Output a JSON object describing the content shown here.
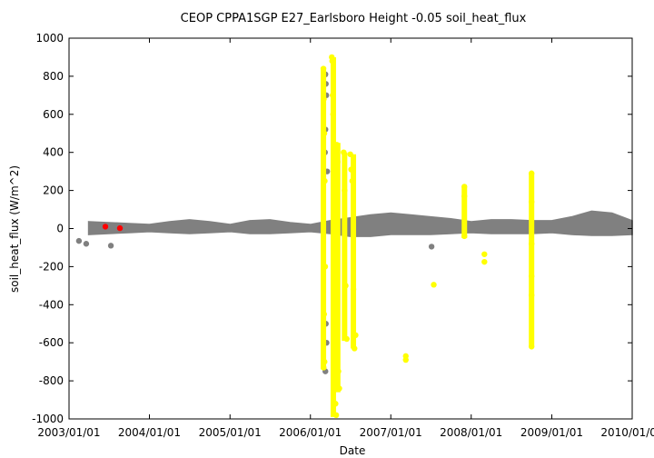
{
  "chart_data": {
    "type": "scatter",
    "title": "CEOP CPPA1SGP E27_Earlsboro Height -0.05 soil_heat_flux",
    "xlabel": "Date",
    "ylabel": "soil_heat_flux (W/m^2)",
    "xlim": [
      "2003/01/01",
      "2010/01/01"
    ],
    "ylim": [
      -1000,
      1000
    ],
    "x_ticks": [
      "2003/01/01",
      "2004/01/01",
      "2005/01/01",
      "2006/01/01",
      "2007/01/01",
      "2008/01/01",
      "2009/01/01",
      "2010/01/01"
    ],
    "y_ticks": [
      1000,
      800,
      600,
      400,
      200,
      0,
      -200,
      -400,
      -600,
      -800,
      -1000
    ],
    "grid": false,
    "legend": "none",
    "series": [
      {
        "color": "#808080",
        "style": "band",
        "band": [
          {
            "x": "2003/04/01",
            "lo": -30,
            "hi": 35
          },
          {
            "x": "2003/07/01",
            "lo": -25,
            "hi": 30
          },
          {
            "x": "2003/10/01",
            "lo": -20,
            "hi": 25
          },
          {
            "x": "2004/01/01",
            "lo": -15,
            "hi": 20
          },
          {
            "x": "2004/04/01",
            "lo": -20,
            "hi": 35
          },
          {
            "x": "2004/07/01",
            "lo": -25,
            "hi": 45
          },
          {
            "x": "2004/10/01",
            "lo": -20,
            "hi": 35
          },
          {
            "x": "2005/01/01",
            "lo": -15,
            "hi": 20
          },
          {
            "x": "2005/04/01",
            "lo": -25,
            "hi": 40
          },
          {
            "x": "2005/07/01",
            "lo": -25,
            "hi": 45
          },
          {
            "x": "2005/10/01",
            "lo": -20,
            "hi": 30
          },
          {
            "x": "2006/01/01",
            "lo": -15,
            "hi": 20
          },
          {
            "x": "2006/04/01",
            "lo": -25,
            "hi": 40
          },
          {
            "x": "2006/07/01",
            "lo": -40,
            "hi": 55
          },
          {
            "x": "2006/10/01",
            "lo": -40,
            "hi": 70
          },
          {
            "x": "2007/01/01",
            "lo": -30,
            "hi": 80
          },
          {
            "x": "2007/04/01",
            "lo": -30,
            "hi": 70
          },
          {
            "x": "2007/07/01",
            "lo": -30,
            "hi": 60
          },
          {
            "x": "2007/10/01",
            "lo": -25,
            "hi": 50
          },
          {
            "x": "2008/01/01",
            "lo": -20,
            "hi": 35
          },
          {
            "x": "2008/04/01",
            "lo": -25,
            "hi": 45
          },
          {
            "x": "2008/07/01",
            "lo": -25,
            "hi": 45
          },
          {
            "x": "2008/10/01",
            "lo": -25,
            "hi": 40
          },
          {
            "x": "2009/01/01",
            "lo": -20,
            "hi": 40
          },
          {
            "x": "2009/04/01",
            "lo": -30,
            "hi": 60
          },
          {
            "x": "2009/07/01",
            "lo": -35,
            "hi": 90
          },
          {
            "x": "2009/10/01",
            "lo": -35,
            "hi": 80
          },
          {
            "x": "2009/12/31",
            "lo": -30,
            "hi": 40
          }
        ],
        "points": [
          {
            "x": "2003/02/15",
            "y": -65
          },
          {
            "x": "2003/03/20",
            "y": -80
          },
          {
            "x": "2003/07/10",
            "y": -90
          },
          {
            "x": "2006/03/10",
            "y": 810
          },
          {
            "x": "2006/03/12",
            "y": 760
          },
          {
            "x": "2006/03/14",
            "y": 700
          },
          {
            "x": "2006/03/10",
            "y": 520
          },
          {
            "x": "2006/03/08",
            "y": 400
          },
          {
            "x": "2006/03/18",
            "y": 300
          },
          {
            "x": "2006/03/12",
            "y": -500
          },
          {
            "x": "2006/03/15",
            "y": -600
          },
          {
            "x": "2006/03/10",
            "y": -750
          },
          {
            "x": "2007/07/05",
            "y": -95
          }
        ]
      },
      {
        "color": "#ffff00",
        "style": "points-with-stems",
        "points": [
          {
            "x": "2006/03/01",
            "y": 840
          },
          {
            "x": "2006/03/03",
            "y": 680
          },
          {
            "x": "2006/03/05",
            "y": 500
          },
          {
            "x": "2006/03/07",
            "y": 250
          },
          {
            "x": "2006/03/09",
            "y": -200
          },
          {
            "x": "2006/03/04",
            "y": -450
          },
          {
            "x": "2006/03/06",
            "y": -700
          },
          {
            "x": "2006/03/02",
            "y": -730
          },
          {
            "x": "2006/04/08",
            "y": 900
          },
          {
            "x": "2006/04/10",
            "y": 880
          },
          {
            "x": "2006/04/12",
            "y": 700
          },
          {
            "x": "2006/04/14",
            "y": 600
          },
          {
            "x": "2006/04/16",
            "y": 400
          },
          {
            "x": "2006/04/18",
            "y": -400
          },
          {
            "x": "2006/04/20",
            "y": -600
          },
          {
            "x": "2006/04/22",
            "y": -800
          },
          {
            "x": "2006/04/25",
            "y": -920
          },
          {
            "x": "2006/04/28",
            "y": -980
          },
          {
            "x": "2006/05/01",
            "y": 440
          },
          {
            "x": "2006/05/05",
            "y": 350
          },
          {
            "x": "2006/05/08",
            "y": -750
          },
          {
            "x": "2006/05/12",
            "y": -840
          },
          {
            "x": "2006/06/01",
            "y": 400
          },
          {
            "x": "2006/06/05",
            "y": 200
          },
          {
            "x": "2006/06/10",
            "y": -300
          },
          {
            "x": "2006/06/15",
            "y": -580
          },
          {
            "x": "2006/07/01",
            "y": 390
          },
          {
            "x": "2006/07/05",
            "y": 310
          },
          {
            "x": "2006/07/10",
            "y": 250
          },
          {
            "x": "2006/07/15",
            "y": -320
          },
          {
            "x": "2006/07/20",
            "y": -630
          },
          {
            "x": "2006/07/25",
            "y": -560
          },
          {
            "x": "2007/03/10",
            "y": -670
          },
          {
            "x": "2007/03/10",
            "y": -690
          },
          {
            "x": "2007/07/15",
            "y": -295
          },
          {
            "x": "2007/12/01",
            "y": 220
          },
          {
            "x": "2007/12/01",
            "y": 170
          },
          {
            "x": "2007/12/01",
            "y": -40
          },
          {
            "x": "2008/03/01",
            "y": -135
          },
          {
            "x": "2008/03/01",
            "y": -175
          },
          {
            "x": "2008/10/01",
            "y": 290
          },
          {
            "x": "2008/10/01",
            "y": 140
          },
          {
            "x": "2008/10/01",
            "y": -80
          },
          {
            "x": "2008/10/01",
            "y": -250
          },
          {
            "x": "2008/10/01",
            "y": -350
          },
          {
            "x": "2008/10/01",
            "y": -620
          }
        ],
        "stems": [
          {
            "x": "2006/03/01",
            "y_min": -740,
            "y_max": 840
          },
          {
            "x": "2006/04/15",
            "y_min": -990,
            "y_max": 900
          },
          {
            "x": "2006/05/05",
            "y_min": -860,
            "y_max": 450
          },
          {
            "x": "2006/06/05",
            "y_min": -590,
            "y_max": 400
          },
          {
            "x": "2006/07/15",
            "y_min": -630,
            "y_max": 390
          },
          {
            "x": "2007/12/01",
            "y_min": -50,
            "y_max": 220
          },
          {
            "x": "2008/10/01",
            "y_min": -620,
            "y_max": 290
          }
        ]
      },
      {
        "color": "#ff0000",
        "style": "points",
        "points": [
          {
            "x": "2003/06/15",
            "y": 10
          },
          {
            "x": "2003/08/20",
            "y": 2
          }
        ]
      }
    ]
  }
}
